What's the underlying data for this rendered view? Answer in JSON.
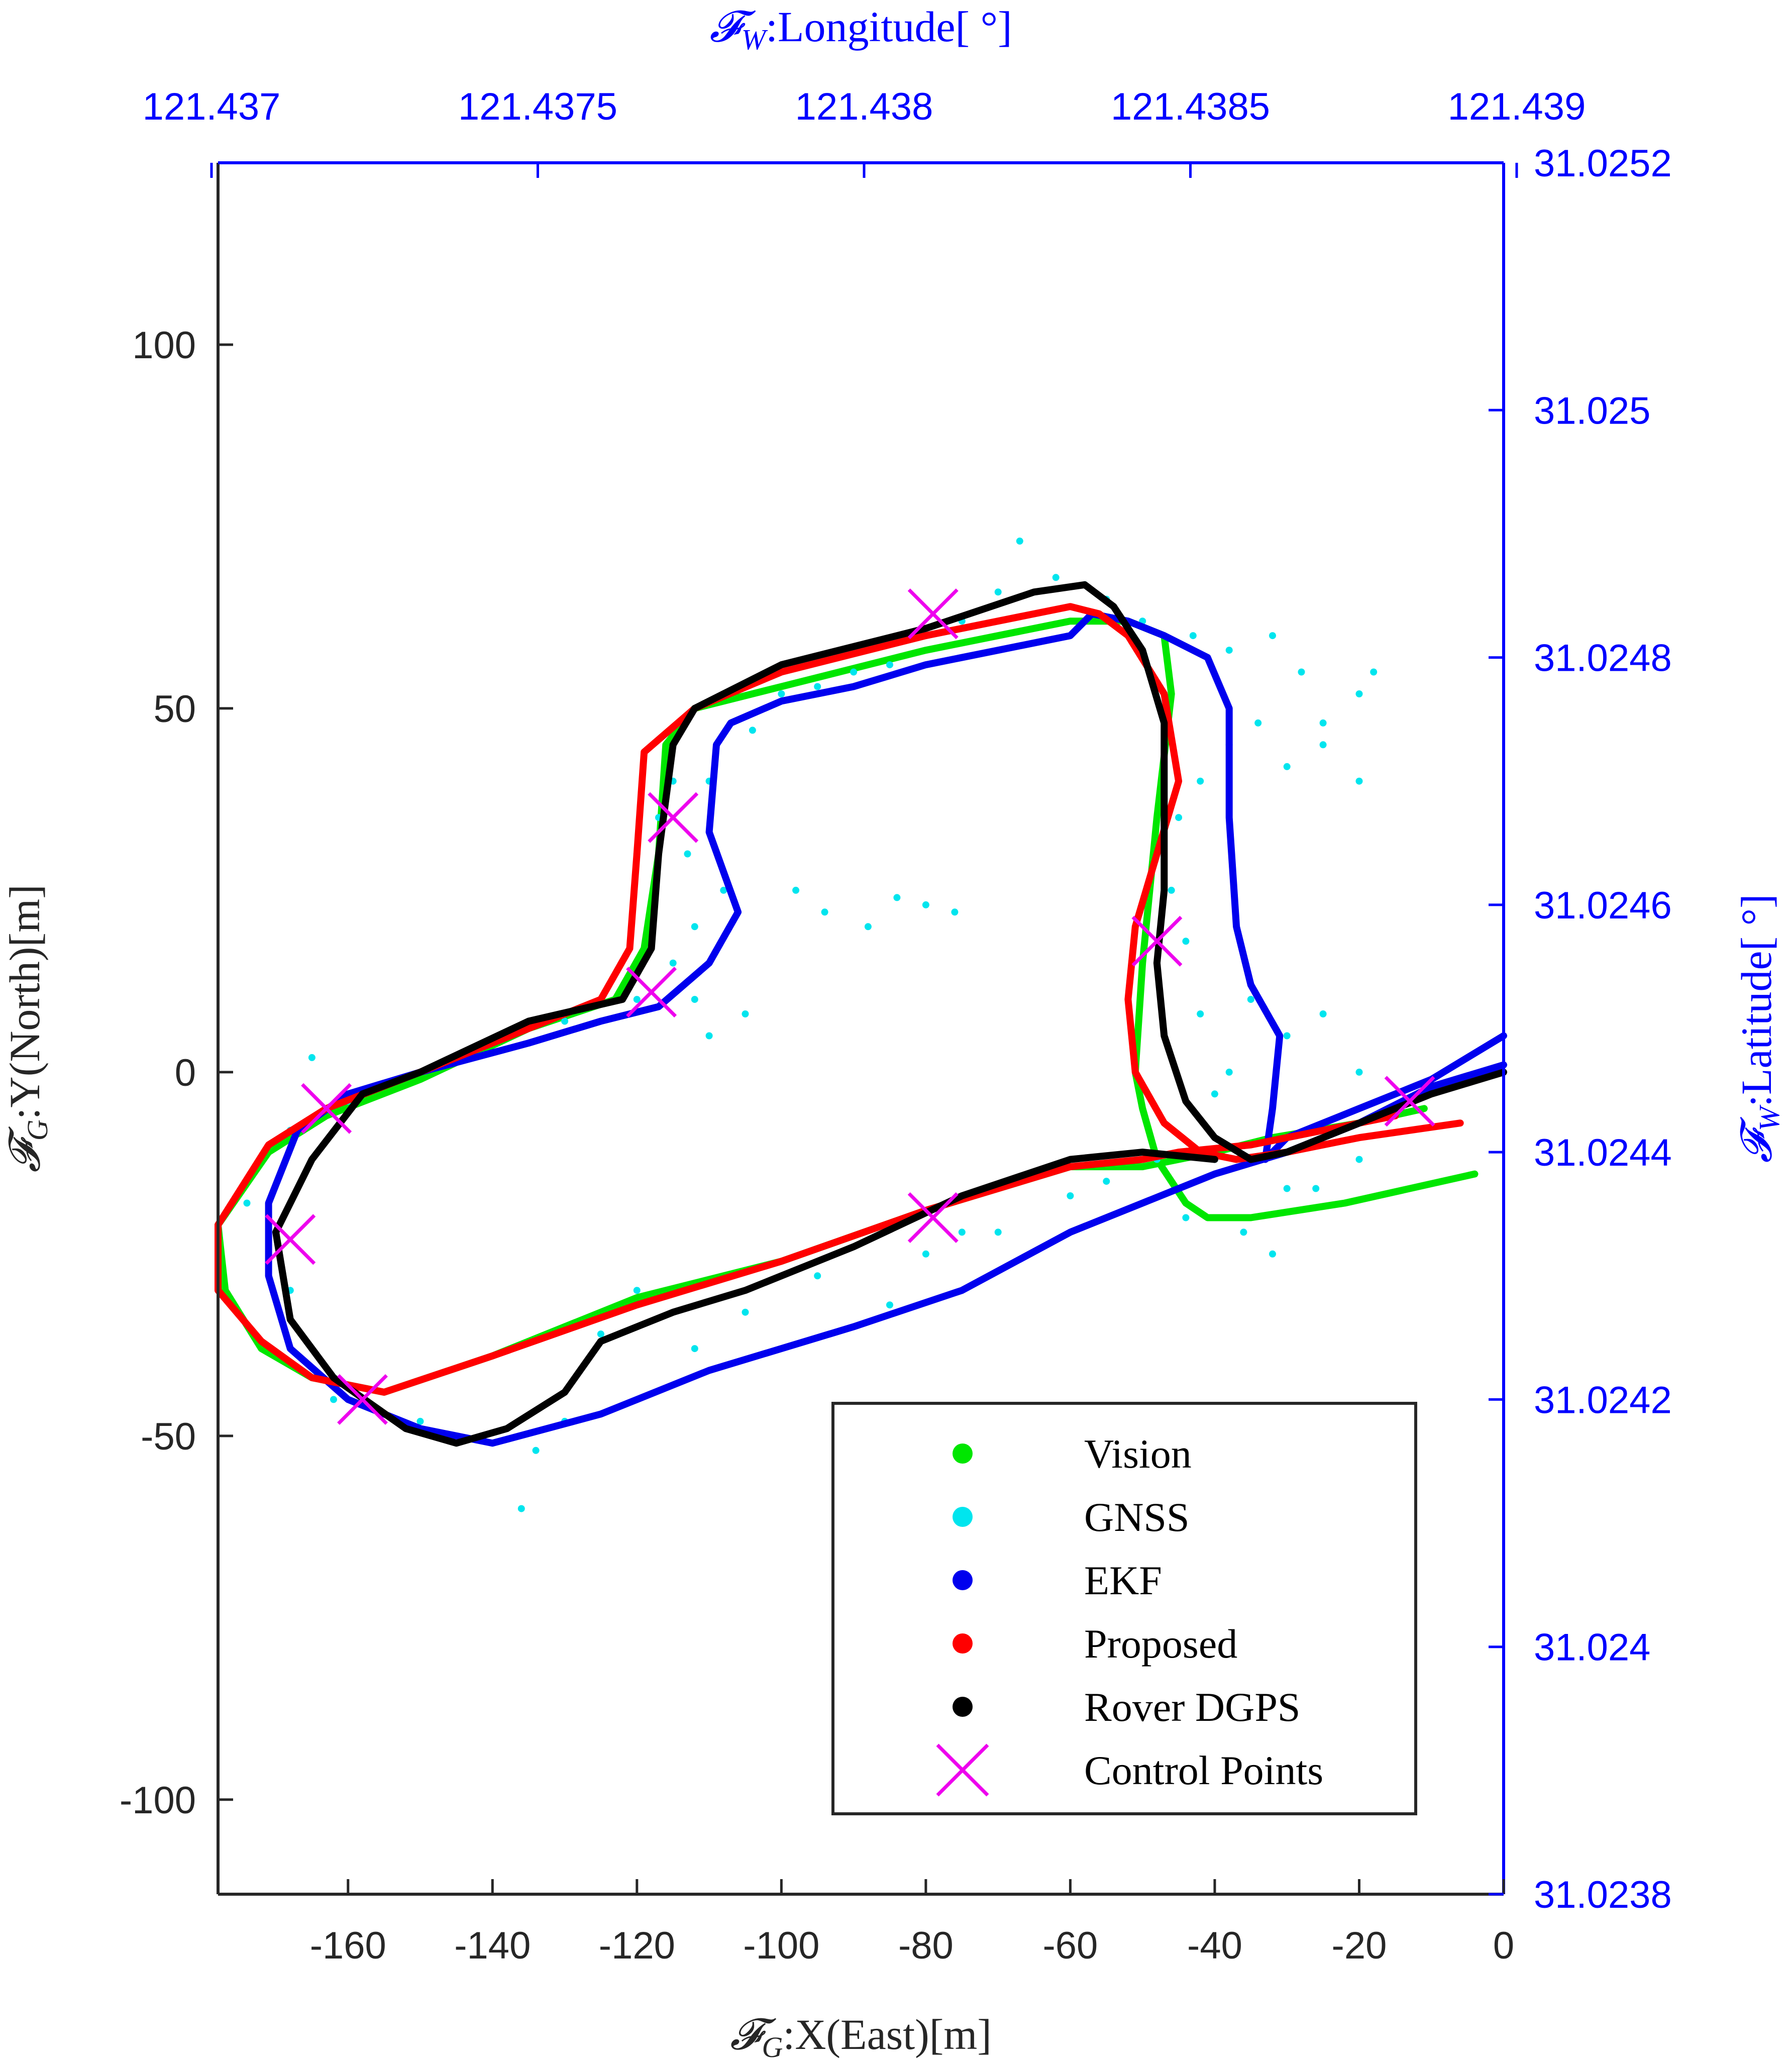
{
  "chart_data": {
    "type": "line",
    "axes": {
      "bottom": {
        "label_prefix": "𝓕",
        "label_sub": "G",
        "label_text": ":X(East)[m]",
        "range": [
          -178,
          0
        ],
        "ticks": [
          -160,
          -140,
          -120,
          -100,
          -80,
          -60,
          -40,
          -20,
          0
        ],
        "tick_labels": [
          "-160",
          "-140",
          "-120",
          "-100",
          "-80",
          "-60",
          "-40",
          "-20",
          "0"
        ]
      },
      "left": {
        "label_prefix": "𝓕",
        "label_sub": "G",
        "label_text": ":Y(North)[m]",
        "range": [
          -113,
          125
        ],
        "ticks": [
          -100,
          -50,
          0,
          50,
          100
        ],
        "tick_labels": [
          "-100",
          "-50",
          "0",
          "50",
          "100"
        ]
      },
      "top": {
        "label_prefix": "𝓕",
        "label_sub": "W",
        "label_text": ":Longitude[ °]",
        "range": [
          121.43701,
          121.43898
        ],
        "ticks": [
          121.437,
          121.4375,
          121.438,
          121.4385,
          121.439
        ],
        "tick_labels": [
          "121.437",
          "121.4375",
          "121.438",
          "121.4385",
          "121.439"
        ]
      },
      "right": {
        "label_prefix": "𝓕",
        "label_sub": "W",
        "label_text": ":Latitude[ °]",
        "range": [
          31.0238,
          31.0252
        ],
        "ticks": [
          31.0238,
          31.024,
          31.0242,
          31.0244,
          31.0246,
          31.0248,
          31.025,
          31.0252
        ],
        "tick_labels": [
          "31.0238",
          "31.024",
          "31.0242",
          "31.0244",
          "31.0246",
          "31.0248",
          "31.025",
          "31.0252"
        ]
      }
    },
    "grid": false,
    "legend_position": "bottom-right",
    "series": [
      {
        "name": "Vision",
        "color": "#00e600",
        "style": "line",
        "points": [
          [
            -4,
            -14
          ],
          [
            -22,
            -18
          ],
          [
            -35,
            -20
          ],
          [
            -41,
            -20
          ],
          [
            -44,
            -18
          ],
          [
            -48,
            -12
          ],
          [
            -50,
            -5
          ],
          [
            -51,
            0
          ],
          [
            -50,
            15
          ],
          [
            -48,
            35
          ],
          [
            -46,
            52
          ],
          [
            -47,
            60
          ],
          [
            -52,
            62
          ],
          [
            -60,
            62
          ],
          [
            -80,
            58
          ],
          [
            -100,
            53
          ],
          [
            -112,
            50
          ],
          [
            -116,
            45
          ],
          [
            -117,
            30
          ],
          [
            -119,
            17
          ],
          [
            -123,
            10
          ],
          [
            -135,
            6
          ],
          [
            -150,
            -1
          ],
          [
            -163,
            -6
          ],
          [
            -171,
            -11
          ],
          [
            -178,
            -21
          ],
          [
            -177,
            -30
          ],
          [
            -172,
            -38
          ],
          [
            -165,
            -42
          ],
          [
            -155,
            -44
          ],
          [
            -140,
            -39
          ],
          [
            -120,
            -31
          ],
          [
            -100,
            -26
          ],
          [
            -80,
            -19
          ],
          [
            -60,
            -13
          ],
          [
            -50,
            -13
          ],
          [
            -40,
            -11
          ],
          [
            -32,
            -9
          ],
          [
            -20,
            -7
          ],
          [
            -11,
            -5
          ]
        ]
      },
      {
        "name": "GNSS",
        "color": "#00e5ee",
        "style": "dots",
        "points": [
          [
            -165,
            2
          ],
          [
            -168,
            -8
          ],
          [
            -174,
            -18
          ],
          [
            -168,
            -30
          ],
          [
            -162,
            -45
          ],
          [
            -150,
            -48
          ],
          [
            -140,
            -51
          ],
          [
            -136,
            -60
          ],
          [
            -134,
            -52
          ],
          [
            -130,
            -48
          ],
          [
            -125,
            -36
          ],
          [
            -120,
            -30
          ],
          [
            -112,
            -38
          ],
          [
            -105,
            -33
          ],
          [
            -95,
            -28
          ],
          [
            -85,
            -32
          ],
          [
            -80,
            -25
          ],
          [
            -75,
            -22
          ],
          [
            -70,
            -22
          ],
          [
            -60,
            -17
          ],
          [
            -55,
            -15
          ],
          [
            -48,
            -12
          ],
          [
            -44,
            -20
          ],
          [
            -40,
            -12
          ],
          [
            -36,
            -22
          ],
          [
            -32,
            -25
          ],
          [
            -30,
            -16
          ],
          [
            -26,
            -16
          ],
          [
            -20,
            -12
          ],
          [
            -15,
            -5
          ],
          [
            -20,
            0
          ],
          [
            -25,
            8
          ],
          [
            -30,
            5
          ],
          [
            -35,
            10
          ],
          [
            -38,
            0
          ],
          [
            -40,
            -3
          ],
          [
            -42,
            8
          ],
          [
            -44,
            18
          ],
          [
            -46,
            25
          ],
          [
            -45,
            35
          ],
          [
            -42,
            40
          ],
          [
            -38,
            45
          ],
          [
            -34,
            48
          ],
          [
            -30,
            42
          ],
          [
            -25,
            48
          ],
          [
            -20,
            52
          ],
          [
            -18,
            55
          ],
          [
            -20,
            40
          ],
          [
            -25,
            45
          ],
          [
            -28,
            55
          ],
          [
            -32,
            60
          ],
          [
            -38,
            58
          ],
          [
            -43,
            60
          ],
          [
            -50,
            62
          ],
          [
            -55,
            65
          ],
          [
            -58,
            67
          ],
          [
            -62,
            68
          ],
          [
            -67,
            73
          ],
          [
            -70,
            66
          ],
          [
            -75,
            62
          ],
          [
            -80,
            60
          ],
          [
            -85,
            56
          ],
          [
            -90,
            55
          ],
          [
            -95,
            53
          ],
          [
            -100,
            52
          ],
          [
            -104,
            47
          ],
          [
            -110,
            40
          ],
          [
            -113,
            30
          ],
          [
            -115,
            40
          ],
          [
            -117,
            35
          ],
          [
            -120,
            30
          ],
          [
            -115,
            15
          ],
          [
            -112,
            10
          ],
          [
            -110,
            5
          ],
          [
            -105,
            8
          ],
          [
            -110,
            15
          ],
          [
            -120,
            10
          ],
          [
            -130,
            7
          ],
          [
            -140,
            4
          ],
          [
            -150,
            0
          ],
          [
            -160,
            -4
          ],
          [
            -88,
            20
          ],
          [
            -84,
            24
          ],
          [
            -80,
            23
          ],
          [
            -76,
            22
          ],
          [
            -108,
            25
          ],
          [
            -112,
            20
          ],
          [
            -98,
            25
          ],
          [
            -94,
            22
          ]
        ]
      },
      {
        "name": "EKF",
        "color": "#0000ee",
        "style": "line",
        "points": [
          [
            0,
            5
          ],
          [
            -5,
            2
          ],
          [
            -10,
            -1
          ],
          [
            -20,
            -5
          ],
          [
            -30,
            -9
          ],
          [
            -33,
            -12
          ],
          [
            -32,
            -5
          ],
          [
            -31,
            5
          ],
          [
            -35,
            12
          ],
          [
            -37,
            20
          ],
          [
            -38,
            35
          ],
          [
            -38,
            50
          ],
          [
            -41,
            57
          ],
          [
            -47,
            60
          ],
          [
            -52,
            62
          ],
          [
            -57,
            63
          ],
          [
            -60,
            60
          ],
          [
            -70,
            58
          ],
          [
            -80,
            56
          ],
          [
            -90,
            53
          ],
          [
            -100,
            51
          ],
          [
            -107,
            48
          ],
          [
            -109,
            45
          ],
          [
            -110,
            33
          ],
          [
            -106,
            22
          ],
          [
            -110,
            15
          ],
          [
            -117,
            9
          ],
          [
            -125,
            7
          ],
          [
            -135,
            4
          ],
          [
            -150,
            0
          ],
          [
            -160,
            -3
          ],
          [
            -167,
            -8
          ],
          [
            -171,
            -18
          ],
          [
            -171,
            -28
          ],
          [
            -168,
            -38
          ],
          [
            -160,
            -45
          ],
          [
            -150,
            -49
          ],
          [
            -140,
            -51
          ],
          [
            -125,
            -47
          ],
          [
            -110,
            -41
          ],
          [
            -90,
            -35
          ],
          [
            -75,
            -30
          ],
          [
            -60,
            -22
          ],
          [
            -50,
            -18
          ],
          [
            -40,
            -14
          ],
          [
            -30,
            -11
          ],
          [
            -20,
            -7
          ],
          [
            -10,
            -2
          ],
          [
            0,
            1
          ]
        ]
      },
      {
        "name": "Proposed",
        "color": "#ff0000",
        "style": "line",
        "points": [
          [
            -6,
            -7
          ],
          [
            -20,
            -9
          ],
          [
            -30,
            -11
          ],
          [
            -37,
            -12
          ],
          [
            -42,
            -11
          ],
          [
            -47,
            -7
          ],
          [
            -51,
            0
          ],
          [
            -52,
            10
          ],
          [
            -51,
            20
          ],
          [
            -48,
            30
          ],
          [
            -45,
            40
          ],
          [
            -47,
            52
          ],
          [
            -52,
            60
          ],
          [
            -56,
            63
          ],
          [
            -60,
            64
          ],
          [
            -80,
            60
          ],
          [
            -100,
            55
          ],
          [
            -112,
            50
          ],
          [
            -119,
            44
          ],
          [
            -120,
            30
          ],
          [
            -121,
            17
          ],
          [
            -125,
            10
          ],
          [
            -135,
            6
          ],
          [
            -150,
            0
          ],
          [
            -163,
            -5
          ],
          [
            -171,
            -10
          ],
          [
            -178,
            -21
          ],
          [
            -178,
            -30
          ],
          [
            -172,
            -37
          ],
          [
            -165,
            -42
          ],
          [
            -155,
            -44
          ],
          [
            -140,
            -39
          ],
          [
            -120,
            -32
          ],
          [
            -100,
            -26
          ],
          [
            -80,
            -19
          ],
          [
            -60,
            -13
          ],
          [
            -50,
            -12
          ],
          [
            -45,
            -11
          ],
          [
            -35,
            -10
          ],
          [
            -25,
            -8
          ],
          [
            -15,
            -6
          ]
        ]
      },
      {
        "name": "Rover DGPS",
        "color": "#000000",
        "style": "line",
        "points": [
          [
            0,
            0
          ],
          [
            -10,
            -3
          ],
          [
            -20,
            -7
          ],
          [
            -30,
            -11
          ],
          [
            -35,
            -12
          ],
          [
            -40,
            -9
          ],
          [
            -44,
            -4
          ],
          [
            -47,
            5
          ],
          [
            -48,
            15
          ],
          [
            -47,
            25
          ],
          [
            -47,
            35
          ],
          [
            -47,
            48
          ],
          [
            -50,
            58
          ],
          [
            -54,
            64
          ],
          [
            -58,
            67
          ],
          [
            -65,
            66
          ],
          [
            -80,
            61
          ],
          [
            -100,
            56
          ],
          [
            -112,
            50
          ],
          [
            -115,
            45
          ],
          [
            -117,
            30
          ],
          [
            -118,
            17
          ],
          [
            -122,
            10
          ],
          [
            -135,
            7
          ],
          [
            -150,
            0
          ],
          [
            -158,
            -3
          ],
          [
            -165,
            -12
          ],
          [
            -170,
            -22
          ],
          [
            -168,
            -34
          ],
          [
            -162,
            -42
          ],
          [
            -152,
            -49
          ],
          [
            -145,
            -51
          ],
          [
            -138,
            -49
          ],
          [
            -130,
            -44
          ],
          [
            -125,
            -37
          ],
          [
            -115,
            -33
          ],
          [
            -105,
            -30
          ],
          [
            -90,
            -24
          ],
          [
            -75,
            -17
          ],
          [
            -60,
            -12
          ],
          [
            -50,
            -11
          ],
          [
            -40,
            -12
          ]
        ]
      }
    ],
    "control_points": {
      "name": "Control Points",
      "color": "#ee00ee",
      "points": [
        [
          -79,
          63
        ],
        [
          -115,
          35
        ],
        [
          -48,
          18
        ],
        [
          -118,
          11
        ],
        [
          -163,
          -5
        ],
        [
          -13,
          -4
        ],
        [
          -79,
          -20
        ],
        [
          -168,
          -23
        ],
        [
          -158,
          -45
        ]
      ]
    }
  }
}
